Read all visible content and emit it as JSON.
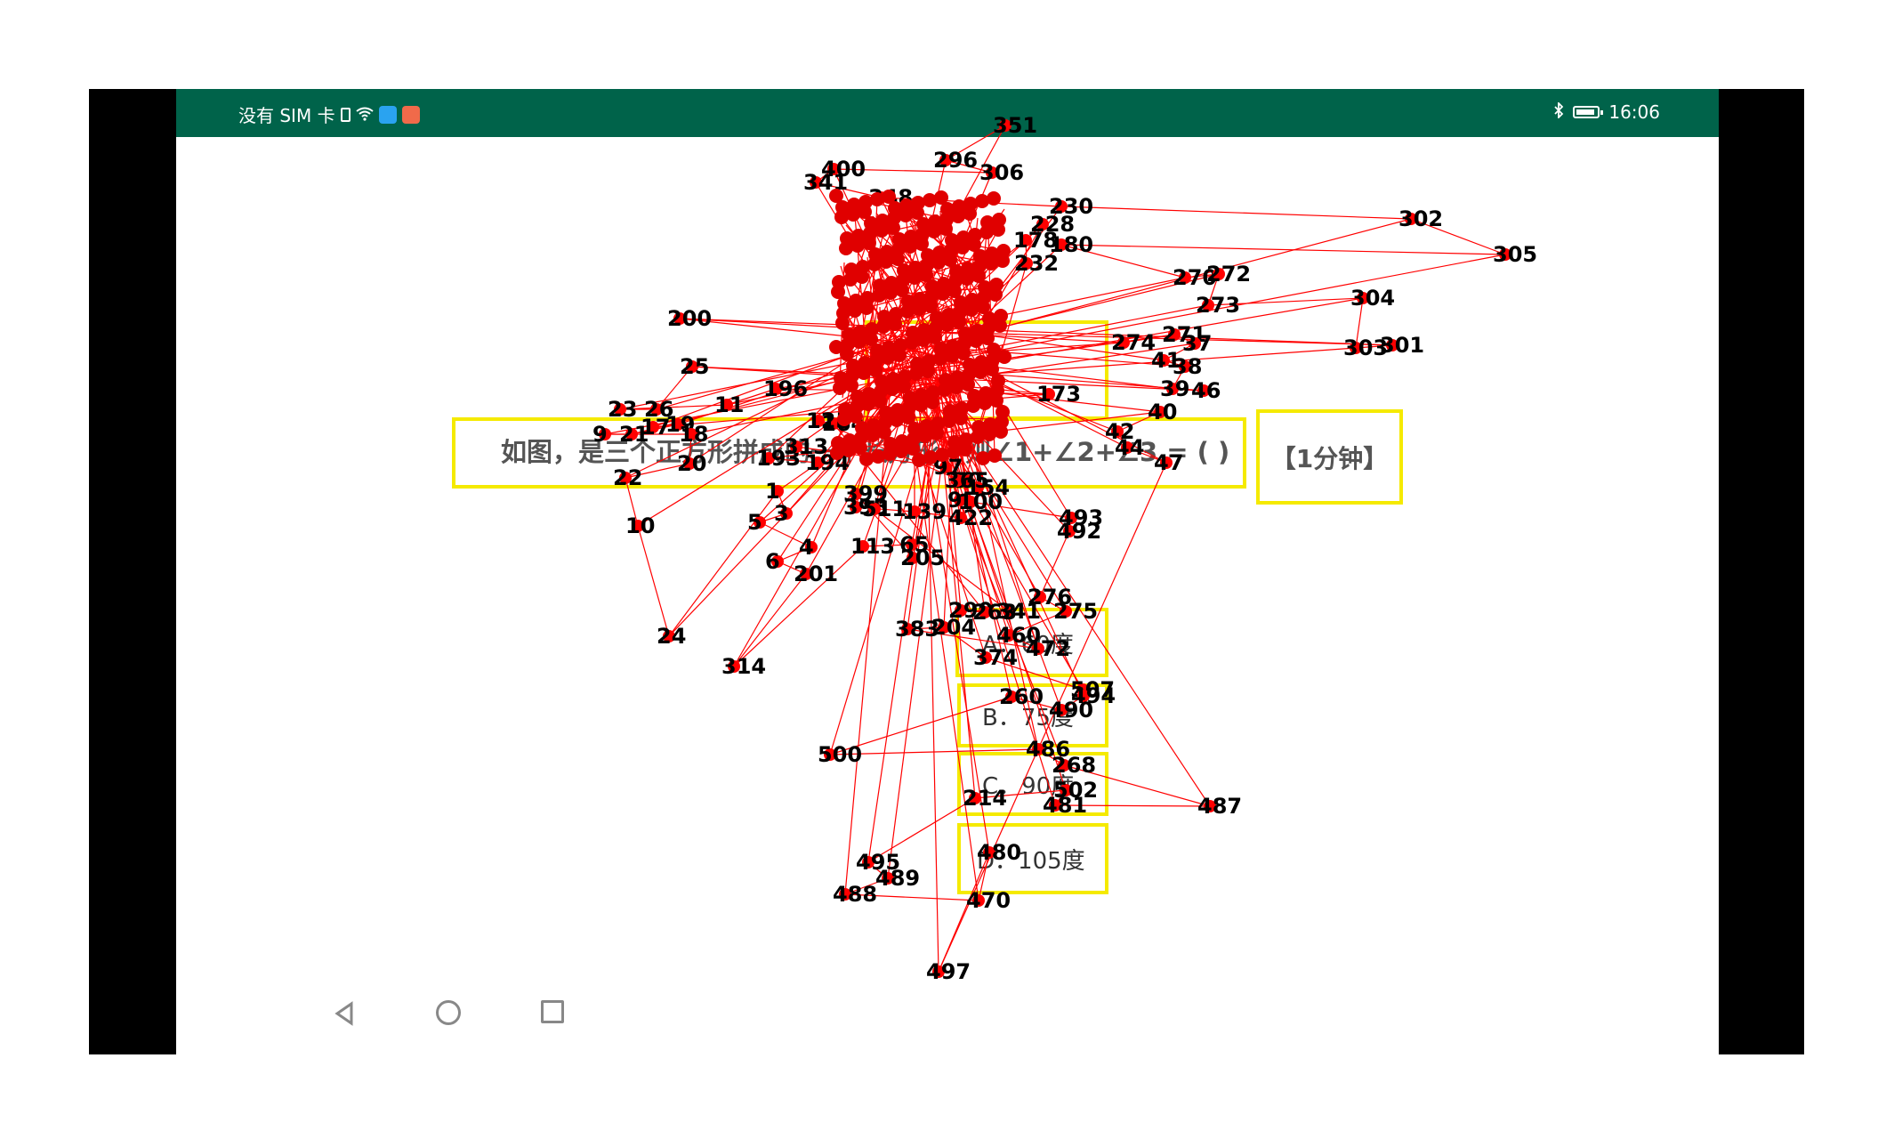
{
  "statusbar": {
    "carrier": "没有 SIM 卡",
    "time": "16:06",
    "icons": [
      "sim-icon",
      "wifi-icon",
      "app-badge-icon",
      "app-badge-icon",
      "bluetooth-icon",
      "battery-icon"
    ],
    "app_badge_colors": [
      "#2aa3f0",
      "#f06a4a"
    ]
  },
  "question": {
    "text": "如图，是三个正方形拼成的一个长方形，则∠1+∠2+∠3 = ( )",
    "timer": "【1分钟】"
  },
  "options": [
    {
      "label": "A．60度"
    },
    {
      "label": "B．75度"
    },
    {
      "label": "C．90度"
    },
    {
      "label": "D．105度"
    }
  ],
  "navbar": {
    "icons": [
      "back-icon",
      "home-icon",
      "recent-apps-icon"
    ]
  },
  "overlay": {
    "color": "#ff0000",
    "label_color": "#000000",
    "points": [
      {
        "label": "351",
        "color": "#ff0000"
      },
      {
        "label": "296"
      },
      {
        "label": "306"
      },
      {
        "label": "400"
      },
      {
        "label": "341"
      },
      {
        "label": "348"
      },
      {
        "label": "230"
      },
      {
        "label": "302"
      },
      {
        "label": "305"
      },
      {
        "label": "180"
      },
      {
        "label": "270"
      },
      {
        "label": "272"
      },
      {
        "label": "273"
      },
      {
        "label": "304"
      },
      {
        "label": "303"
      },
      {
        "label": "301"
      },
      {
        "label": "200"
      },
      {
        "label": "274"
      },
      {
        "label": "271"
      },
      {
        "label": "37"
      },
      {
        "label": "41"
      },
      {
        "label": "38"
      },
      {
        "label": "39"
      },
      {
        "label": "46"
      },
      {
        "label": "25"
      },
      {
        "label": "26"
      },
      {
        "label": "23"
      },
      {
        "label": "11"
      },
      {
        "label": "196"
      },
      {
        "label": "173"
      },
      {
        "label": "17"
      },
      {
        "label": "19"
      },
      {
        "label": "21"
      },
      {
        "label": "9"
      },
      {
        "label": "18"
      },
      {
        "label": "20"
      },
      {
        "label": "22"
      },
      {
        "label": "10"
      },
      {
        "label": "24"
      },
      {
        "label": "1"
      },
      {
        "label": "3"
      },
      {
        "label": "5"
      },
      {
        "label": "4"
      },
      {
        "label": "6"
      },
      {
        "label": "201"
      },
      {
        "label": "314"
      },
      {
        "label": "113"
      },
      {
        "label": "65"
      },
      {
        "label": "205"
      },
      {
        "label": "399"
      },
      {
        "label": "398"
      },
      {
        "label": "139"
      },
      {
        "label": "422"
      },
      {
        "label": "95"
      },
      {
        "label": "100"
      },
      {
        "label": "493"
      },
      {
        "label": "492"
      },
      {
        "label": "276"
      },
      {
        "label": "275"
      },
      {
        "label": "460"
      },
      {
        "label": "472"
      },
      {
        "label": "383"
      },
      {
        "label": "204"
      },
      {
        "label": "374"
      },
      {
        "label": "507"
      },
      {
        "label": "494"
      },
      {
        "label": "490"
      },
      {
        "label": "260"
      },
      {
        "label": "500"
      },
      {
        "label": "486"
      },
      {
        "label": "268"
      },
      {
        "label": "487"
      },
      {
        "label": "481"
      },
      {
        "label": "502"
      },
      {
        "label": "214"
      },
      {
        "label": "495"
      },
      {
        "label": "489"
      },
      {
        "label": "488"
      },
      {
        "label": "470"
      },
      {
        "label": "480"
      },
      {
        "label": "497"
      },
      {
        "label": "47"
      },
      {
        "label": "44"
      },
      {
        "label": "42"
      },
      {
        "label": "40"
      },
      {
        "label": "193"
      },
      {
        "label": "194"
      },
      {
        "label": "313"
      },
      {
        "label": "97"
      },
      {
        "label": "50"
      },
      {
        "label": "232"
      },
      {
        "label": "178"
      },
      {
        "label": "228"
      },
      {
        "label": "511"
      },
      {
        "label": "341"
      },
      {
        "label": "290"
      },
      {
        "label": "263"
      },
      {
        "label": "164"
      },
      {
        "label": "125"
      },
      {
        "label": "154"
      },
      {
        "label": "365"
      }
    ]
  }
}
